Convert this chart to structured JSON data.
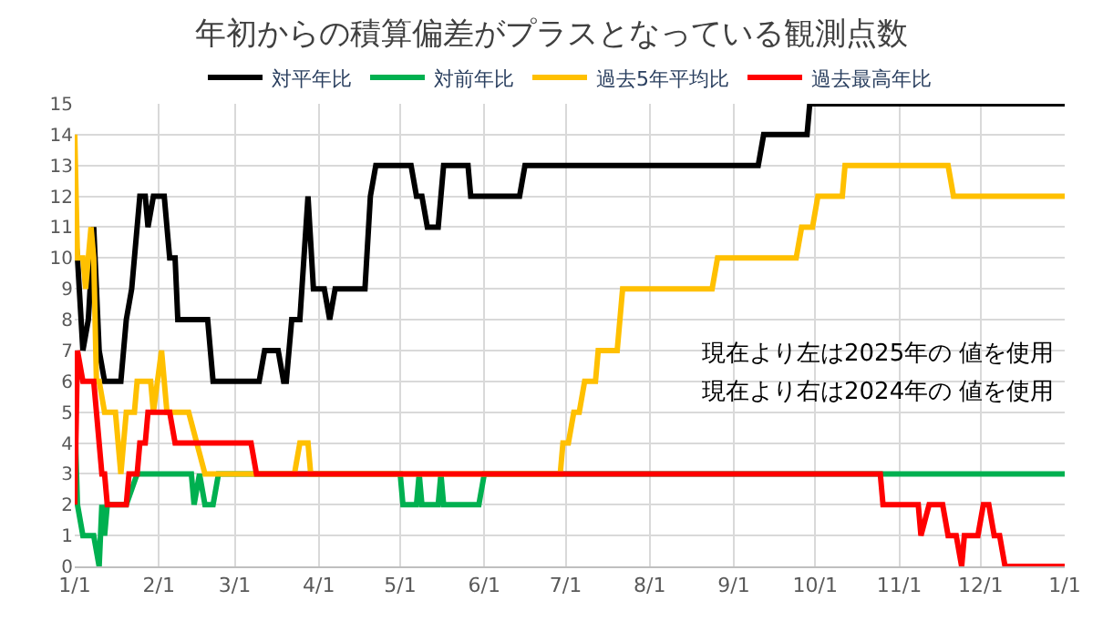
{
  "chart_data": {
    "type": "line",
    "title": "年初からの積算偏差がプラスとなっている観測点数",
    "xlim": [
      "2025-01-01",
      "2026-01-01"
    ],
    "xticks": [
      {
        "value": "2025-01-01",
        "label": "1/1"
      },
      {
        "value": "2025-02-01",
        "label": "2/1"
      },
      {
        "value": "2025-03-01",
        "label": "3/1"
      },
      {
        "value": "2025-04-01",
        "label": "4/1"
      },
      {
        "value": "2025-05-01",
        "label": "5/1"
      },
      {
        "value": "2025-06-01",
        "label": "6/1"
      },
      {
        "value": "2025-07-01",
        "label": "7/1"
      },
      {
        "value": "2025-08-01",
        "label": "8/1"
      },
      {
        "value": "2025-09-01",
        "label": "9/1"
      },
      {
        "value": "2025-10-01",
        "label": "10/1"
      },
      {
        "value": "2025-11-01",
        "label": "11/1"
      },
      {
        "value": "2025-12-01",
        "label": "12/1"
      },
      {
        "value": "2026-01-01",
        "label": "1/1"
      }
    ],
    "ylim": [
      0,
      15
    ],
    "yticks": [
      0,
      1,
      2,
      3,
      4,
      5,
      6,
      7,
      8,
      9,
      10,
      11,
      12,
      13,
      14,
      15
    ],
    "grid": true,
    "legend": "top",
    "marker": "none",
    "line_style": "solid",
    "annotations": [
      "現在より左は2025年の 値を使用",
      "現在より右は2024年の 値を使用"
    ],
    "series": [
      {
        "name": "対平年比",
        "color": "#000000",
        "x": [
          "2025-01-01",
          "2025-01-02",
          "2025-01-04",
          "2025-01-06",
          "2025-01-08",
          "2025-01-10",
          "2025-01-12",
          "2025-01-18",
          "2025-01-20",
          "2025-01-22",
          "2025-01-25",
          "2025-01-27",
          "2025-01-28",
          "2025-01-30",
          "2025-02-03",
          "2025-02-05",
          "2025-02-07",
          "2025-02-08",
          "2025-02-19",
          "2025-02-21",
          "2025-03-10",
          "2025-03-12",
          "2025-03-17",
          "2025-03-19",
          "2025-03-20",
          "2025-03-22",
          "2025-03-25",
          "2025-03-28",
          "2025-03-30",
          "2025-04-03",
          "2025-04-05",
          "2025-04-07",
          "2025-04-18",
          "2025-04-20",
          "2025-04-22",
          "2025-05-05",
          "2025-05-07",
          "2025-05-09",
          "2025-05-11",
          "2025-05-15",
          "2025-05-17",
          "2025-05-26",
          "2025-05-27",
          "2025-06-14",
          "2025-06-16",
          "2025-09-10",
          "2025-09-12",
          "2025-09-28",
          "2025-09-29",
          "2026-01-01"
        ],
        "values": [
          11,
          10,
          7,
          8,
          11,
          7,
          6,
          6,
          8,
          9,
          12,
          12,
          11,
          12,
          12,
          10,
          10,
          8,
          8,
          6,
          6,
          7,
          7,
          6,
          6,
          8,
          8,
          12,
          9,
          9,
          8,
          9,
          9,
          12,
          13,
          13,
          12,
          12,
          11,
          11,
          13,
          13,
          12,
          12,
          13,
          13,
          14,
          14,
          15,
          15
        ]
      },
      {
        "name": "対前年比",
        "color": "#00b050",
        "x": [
          "2025-01-01",
          "2025-01-02",
          "2025-01-04",
          "2025-01-08",
          "2025-01-10",
          "2025-01-11",
          "2025-01-12",
          "2025-01-13",
          "2025-01-20",
          "2025-01-24",
          "2025-02-13",
          "2025-02-14",
          "2025-02-16",
          "2025-02-18",
          "2025-02-21",
          "2025-02-23",
          "2025-05-01",
          "2025-05-02",
          "2025-05-07",
          "2025-05-08",
          "2025-05-09",
          "2025-05-15",
          "2025-05-16",
          "2025-05-17",
          "2025-05-30",
          "2025-06-01",
          "2026-01-01"
        ],
        "values": [
          5,
          2,
          1,
          1,
          0,
          2,
          1,
          2,
          2,
          3,
          3,
          2,
          3,
          2,
          2,
          3,
          3,
          2,
          2,
          3,
          2,
          2,
          3,
          2,
          2,
          3,
          3
        ]
      },
      {
        "name": "過去5年平均比",
        "color": "#ffc000",
        "x": [
          "2025-01-01",
          "2025-01-02",
          "2025-01-04",
          "2025-01-05",
          "2025-01-07",
          "2025-01-08",
          "2025-01-09",
          "2025-01-10",
          "2025-01-12",
          "2025-01-16",
          "2025-01-18",
          "2025-01-20",
          "2025-01-23",
          "2025-01-24",
          "2025-01-29",
          "2025-01-30",
          "2025-02-02",
          "2025-02-04",
          "2025-02-12",
          "2025-02-18",
          "2025-03-23",
          "2025-03-25",
          "2025-03-28",
          "2025-03-29",
          "2025-06-29",
          "2025-06-30",
          "2025-07-02",
          "2025-07-04",
          "2025-07-06",
          "2025-07-08",
          "2025-07-12",
          "2025-07-13",
          "2025-07-20",
          "2025-07-21",
          "2025-07-22",
          "2025-08-24",
          "2025-08-26",
          "2025-09-24",
          "2025-09-26",
          "2025-09-30",
          "2025-10-02",
          "2025-10-11",
          "2025-10-12",
          "2025-11-19",
          "2025-11-21",
          "2026-01-01"
        ],
        "values": [
          14,
          10,
          10,
          9,
          11,
          10,
          6,
          6,
          5,
          5,
          3,
          5,
          5,
          6,
          6,
          5,
          7,
          5,
          5,
          3,
          3,
          4,
          4,
          3,
          3,
          4,
          4,
          5,
          5,
          6,
          6,
          7,
          7,
          8,
          9,
          9,
          10,
          10,
          11,
          11,
          12,
          12,
          13,
          13,
          12,
          12
        ]
      },
      {
        "name": "過去最高年比",
        "color": "#ff0000",
        "x": [
          "2025-01-01",
          "2025-01-02",
          "2025-01-04",
          "2025-01-08",
          "2025-01-11",
          "2025-01-12",
          "2025-01-13",
          "2025-01-20",
          "2025-01-21",
          "2025-01-24",
          "2025-01-25",
          "2025-01-27",
          "2025-01-28",
          "2025-02-05",
          "2025-02-07",
          "2025-03-07",
          "2025-03-09",
          "2025-10-25",
          "2025-10-26",
          "2025-11-08",
          "2025-11-09",
          "2025-11-12",
          "2025-11-17",
          "2025-11-19",
          "2025-11-22",
          "2025-11-24",
          "2025-11-25",
          "2025-11-30",
          "2025-12-02",
          "2025-12-04",
          "2025-12-06",
          "2025-12-08",
          "2025-12-10",
          "2026-01-01"
        ],
        "values": [
          2,
          7,
          6,
          6,
          3,
          3,
          2,
          2,
          3,
          3,
          4,
          4,
          5,
          5,
          4,
          4,
          3,
          3,
          2,
          2,
          1,
          2,
          2,
          1,
          1,
          0,
          1,
          1,
          2,
          2,
          1,
          1,
          0,
          0
        ]
      }
    ]
  }
}
